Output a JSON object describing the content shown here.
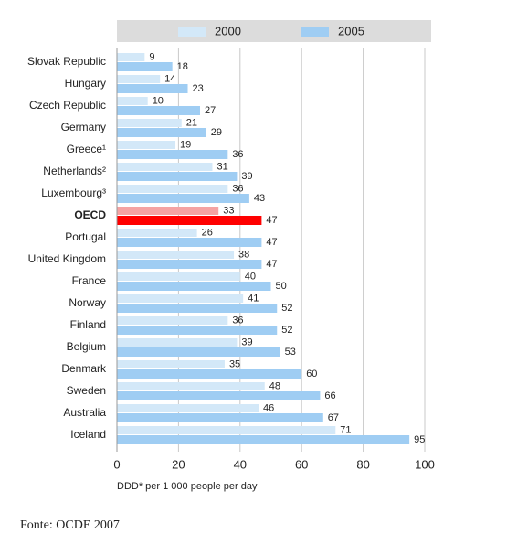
{
  "chart_data": {
    "type": "bar",
    "orientation": "horizontal",
    "categories": [
      "Slovak Republic",
      "Hungary",
      "Czech Republic",
      "Germany",
      "Greece¹",
      "Netherlands²",
      "Luxembourg³",
      "OECD",
      "Portugal",
      "United Kingdom",
      "France",
      "Norway",
      "Finland",
      "Belgium",
      "Denmark",
      "Sweden",
      "Australia",
      "Iceland"
    ],
    "series": [
      {
        "name": "2000",
        "color": "#d3e8f8",
        "highlight_color": "#f5a3a3",
        "values": [
          9,
          14,
          10,
          21,
          19,
          31,
          36,
          33,
          26,
          38,
          40,
          41,
          36,
          39,
          35,
          48,
          46,
          71
        ]
      },
      {
        "name": "2005",
        "color": "#9fcdf3",
        "highlight_color": "#ff0000",
        "values": [
          18,
          23,
          27,
          29,
          36,
          39,
          43,
          47,
          47,
          47,
          50,
          52,
          52,
          53,
          60,
          66,
          67,
          95
        ]
      }
    ],
    "highlight_category": "OECD",
    "xlim": [
      0,
      100
    ],
    "xticks": [
      0,
      20,
      40,
      60,
      80,
      100
    ],
    "grid": true,
    "xlabel": "DDD* per 1 000 people per day",
    "source": "Fonte: OCDE 2007"
  }
}
